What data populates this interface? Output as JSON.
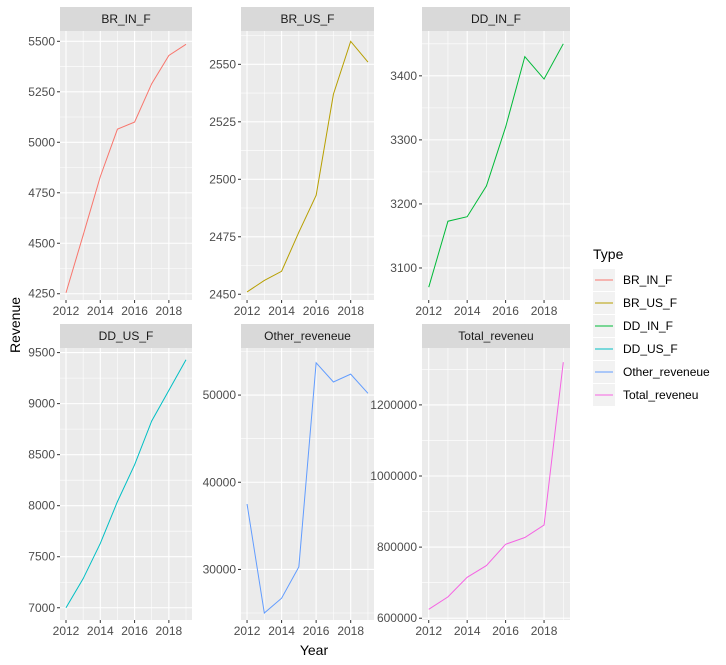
{
  "chart_data": {
    "type": "line",
    "xlabel": "Year",
    "ylabel": "Revenue",
    "legend": {
      "title": "Type",
      "placement": "right"
    },
    "grid": true,
    "facets": [
      {
        "name": "BR_IN_F",
        "color": "#F8766D",
        "x": [
          2012,
          2013,
          2014,
          2015,
          2016,
          2017,
          2018,
          2019
        ],
        "y": [
          4255,
          4540,
          4830,
          5065,
          5100,
          5290,
          5430,
          5485
        ],
        "xlim": [
          2011.65,
          2019.35
        ],
        "xticks": [
          2012,
          2014,
          2016,
          2018
        ],
        "ylim": [
          4219,
          5551
        ],
        "yticks": [
          4250,
          4500,
          4750,
          5000,
          5250,
          5500
        ],
        "ytick_labels": [
          "4250",
          "4500",
          "4750",
          "5000",
          "5250",
          "5500"
        ]
      },
      {
        "name": "BR_US_F",
        "color": "#B79F00",
        "x": [
          2012,
          2013,
          2014,
          2015,
          2016,
          2017,
          2018,
          2019
        ],
        "y": [
          2451,
          2456,
          2460,
          2477,
          2493,
          2537,
          2560,
          2551
        ],
        "xlim": [
          2011.65,
          2019.35
        ],
        "xticks": [
          2012,
          2014,
          2016,
          2018
        ],
        "ylim": [
          2447.5,
          2564.5
        ],
        "yticks": [
          2450,
          2475,
          2500,
          2525,
          2550
        ],
        "ytick_labels": [
          "2450",
          "2475",
          "2500",
          "2525",
          "2550"
        ]
      },
      {
        "name": "DD_IN_F",
        "color": "#00BA38",
        "x": [
          2012,
          2013,
          2014,
          2015,
          2016,
          2017,
          2018,
          2019
        ],
        "y": [
          3070,
          3173,
          3180,
          3228,
          3320,
          3430,
          3395,
          3450
        ],
        "xlim": [
          2011.65,
          2019.35
        ],
        "xticks": [
          2012,
          2014,
          2016,
          2018
        ],
        "ylim": [
          3050,
          3470
        ],
        "yticks": [
          3100,
          3200,
          3300,
          3400
        ],
        "ytick_labels": [
          "3100",
          "3200",
          "3300",
          "3400"
        ]
      },
      {
        "name": "DD_US_F",
        "color": "#00BFC4",
        "x": [
          2012,
          2013,
          2014,
          2015,
          2016,
          2017,
          2018,
          2019
        ],
        "y": [
          7000,
          7285,
          7630,
          8040,
          8400,
          8830,
          9130,
          9430
        ],
        "xlim": [
          2011.65,
          2019.35
        ],
        "xticks": [
          2012,
          2014,
          2016,
          2018
        ],
        "ylim": [
          6880,
          9545
        ],
        "yticks": [
          7000,
          7500,
          8000,
          8500,
          9000,
          9500
        ],
        "ytick_labels": [
          "7000",
          "7500",
          "8000",
          "8500",
          "9000",
          "9500"
        ]
      },
      {
        "name": "Other_reveneue",
        "color": "#619CFF",
        "x": [
          2012,
          2013,
          2014,
          2015,
          2016,
          2017,
          2018,
          2019
        ],
        "y": [
          37500,
          25000,
          26700,
          30300,
          53700,
          51500,
          52400,
          50200
        ],
        "xlim": [
          2011.65,
          2019.35
        ],
        "xticks": [
          2012,
          2014,
          2016,
          2018
        ],
        "ylim": [
          24200,
          55400
        ],
        "yticks": [
          30000,
          40000,
          50000
        ],
        "ytick_labels": [
          "30000",
          "40000",
          "50000"
        ]
      },
      {
        "name": "Total_reveneu",
        "color": "#F564E3",
        "x": [
          2012,
          2013,
          2014,
          2015,
          2016,
          2017,
          2018,
          2019
        ],
        "y": [
          625000,
          660000,
          715000,
          748000,
          808000,
          827000,
          862000,
          1320000
        ],
        "xlim": [
          2011.65,
          2019.35
        ],
        "xticks": [
          2012,
          2014,
          2016,
          2018
        ],
        "ylim": [
          595000,
          1360000
        ],
        "yticks": [
          600000,
          800000,
          1000000,
          1200000
        ],
        "ytick_labels": [
          "600000",
          "800000",
          "1000000",
          "1200000"
        ]
      }
    ]
  }
}
